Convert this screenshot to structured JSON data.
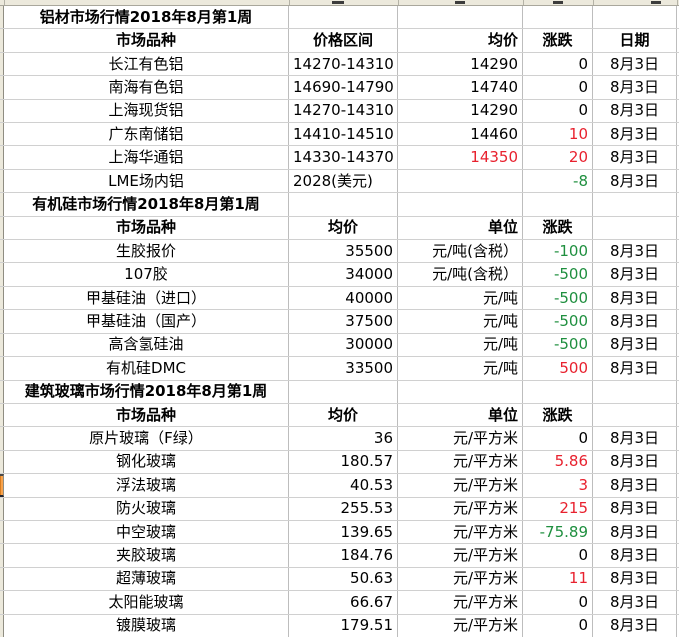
{
  "date_label": "8月3日",
  "colors": {
    "positive": "#e8212e",
    "negative": "#1f8f3f",
    "marker_fill": "#f8a24b",
    "stripe_bg": "#ece9dc"
  },
  "sections": [
    {
      "title": "铝材市场行情2018年8月第1周",
      "columns": [
        "市场品种",
        "价格区间",
        "均价",
        "涨跌",
        "日期"
      ],
      "rows": [
        {
          "cells": [
            "长江有色铝",
            "14270-14310",
            "14290",
            "0",
            "8月3日"
          ]
        },
        {
          "cells": [
            "南海有色铝",
            "14690-14790",
            "14740",
            "0",
            "8月3日"
          ]
        },
        {
          "cells": [
            "上海现货铝",
            "14270-14310",
            "14290",
            "0",
            "8月3日"
          ]
        },
        {
          "cells": [
            "广东南储铝",
            "14410-14510",
            "14460",
            "10",
            "8月3日"
          ],
          "colors": {
            "3": "positive"
          }
        },
        {
          "cells": [
            "上海华通铝",
            "14330-14370",
            "14350",
            "20",
            "8月3日"
          ],
          "colors": {
            "2": "positive",
            "3": "positive"
          }
        },
        {
          "cells": [
            "LME场内铝",
            "2028(美元)",
            "",
            "-8",
            "8月3日"
          ],
          "colors": {
            "3": "negative"
          }
        }
      ]
    },
    {
      "title": "有机硅市场行情2018年8月第1周",
      "columns": [
        "市场品种",
        "均价",
        "单位",
        "涨跌",
        ""
      ],
      "rows": [
        {
          "cells": [
            "生胶报价",
            "35500",
            "元/吨(含税）",
            "-100",
            "8月3日"
          ],
          "colors": {
            "3": "negative"
          }
        },
        {
          "cells": [
            "107胶",
            "34000",
            "元/吨(含税）",
            "-500",
            "8月3日"
          ],
          "colors": {
            "3": "negative"
          }
        },
        {
          "cells": [
            "甲基硅油（进口）",
            "40000",
            "元/吨",
            "-500",
            "8月3日"
          ],
          "colors": {
            "3": "negative"
          }
        },
        {
          "cells": [
            "甲基硅油（国产）",
            "37500",
            "元/吨",
            "-500",
            "8月3日"
          ],
          "colors": {
            "3": "negative"
          }
        },
        {
          "cells": [
            "高含氢硅油",
            "30000",
            "元/吨",
            "-500",
            "8月3日"
          ],
          "colors": {
            "3": "negative"
          }
        },
        {
          "cells": [
            "有机硅DMC",
            "33500",
            "元/吨",
            "500",
            "8月3日"
          ],
          "colors": {
            "3": "positive"
          }
        }
      ]
    },
    {
      "title": "建筑玻璃市场行情2018年8月第1周",
      "columns": [
        "市场品种",
        "均价",
        "单位",
        "涨跌",
        ""
      ],
      "rows": [
        {
          "cells": [
            "原片玻璃（F绿）",
            "36",
            "元/平方米",
            "0",
            "8月3日"
          ]
        },
        {
          "cells": [
            "钢化玻璃",
            "180.57",
            "元/平方米",
            "5.86",
            "8月3日"
          ],
          "colors": {
            "3": "positive"
          }
        },
        {
          "cells": [
            "浮法玻璃",
            "40.53",
            "元/平方米",
            "3",
            "8月3日"
          ],
          "colors": {
            "3": "positive"
          },
          "marker": true
        },
        {
          "cells": [
            "防火玻璃",
            "255.53",
            "元/平方米",
            "215",
            "8月3日"
          ],
          "colors": {
            "3": "positive"
          }
        },
        {
          "cells": [
            "中空玻璃",
            "139.65",
            "元/平方米",
            "-75.89",
            "8月3日"
          ],
          "colors": {
            "3": "negative"
          }
        },
        {
          "cells": [
            "夹胶玻璃",
            "184.76",
            "元/平方米",
            "0",
            "8月3日"
          ]
        },
        {
          "cells": [
            "超薄玻璃",
            "50.63",
            "元/平方米",
            "11",
            "8月3日"
          ],
          "colors": {
            "3": "positive"
          }
        },
        {
          "cells": [
            "太阳能玻璃",
            "66.67",
            "元/平方米",
            "0",
            "8月3日"
          ]
        },
        {
          "cells": [
            "镀膜玻璃",
            "179.51",
            "元/平方米",
            "0",
            "8月3日"
          ]
        }
      ]
    }
  ]
}
